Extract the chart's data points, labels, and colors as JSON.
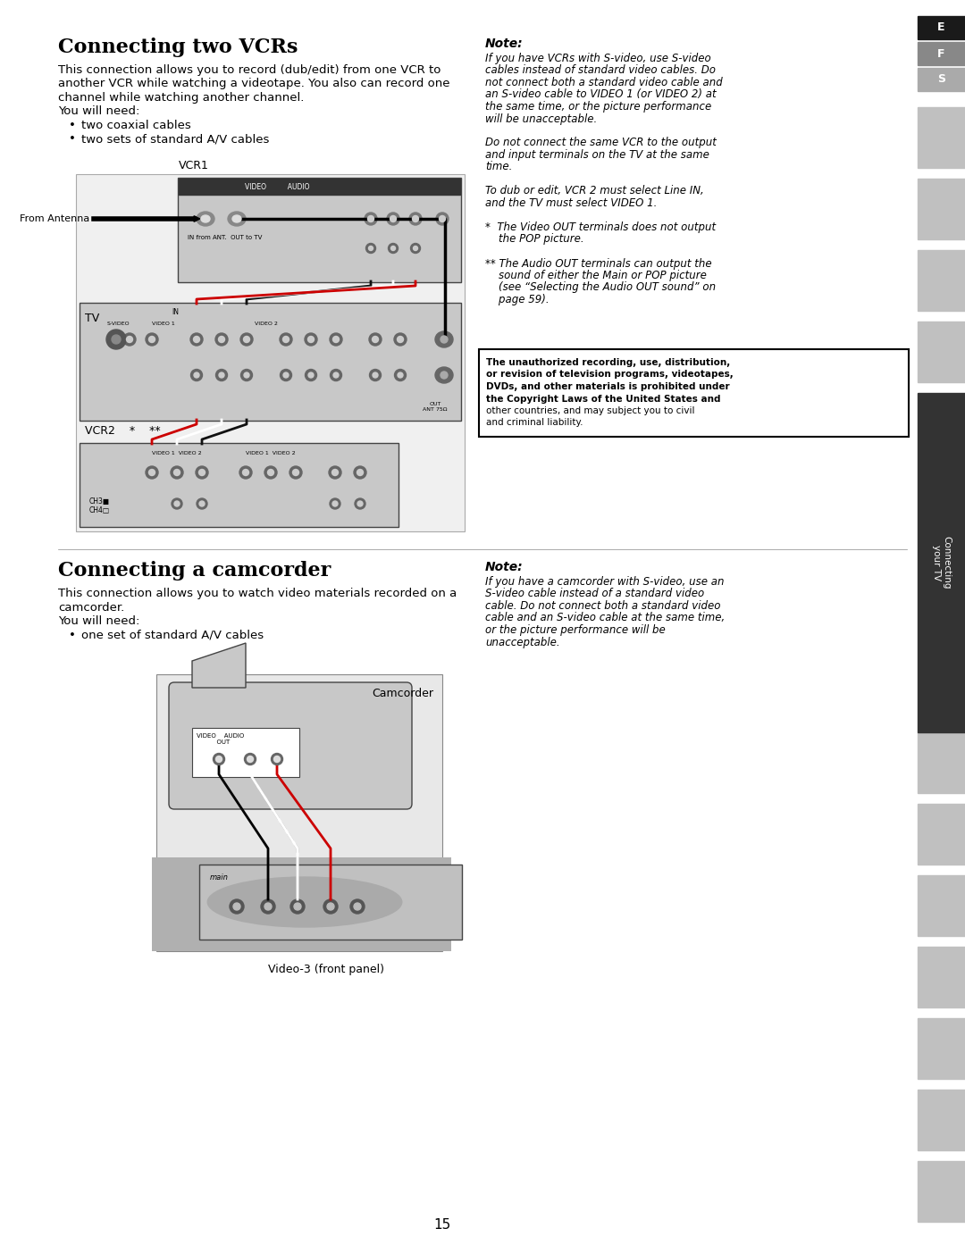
{
  "bg_color": "#ffffff",
  "page_number": "15",
  "s1_title": "Connecting two VCRs",
  "s1_body1": "This connection allows you to record (dub/edit) from one VCR to",
  "s1_body2": "another VCR while watching a videotape. You also can record one",
  "s1_body3": "channel while watching another channel.",
  "s1_need": "You will need:",
  "s1_bullets": [
    "two coaxial cables",
    "two sets of standard A/V cables"
  ],
  "n1_title": "Note:",
  "n1_text": [
    "If you have VCRs with S-video, use S-video",
    "cables instead of standard video cables. Do",
    "not connect both a standard video cable and",
    "an S-video cable to VIDEO 1 (or VIDEO 2) at",
    "the same time, or the picture performance",
    "will be unacceptable.",
    "",
    "Do not connect the same VCR to the output",
    "and input terminals on the TV at the same",
    "time.",
    "",
    "To dub or edit, VCR 2 must select Line IN,",
    "and the TV must select VIDEO 1.",
    "",
    "*  The Video OUT terminals does not output",
    "    the POP picture.",
    "",
    "** The Audio OUT terminals can output the",
    "    sound of either the Main or POP picture",
    "    (see “Selecting the Audio OUT sound” on",
    "    page 59)."
  ],
  "warn_text_bold": [
    "The unauthorized recording, use, distribution,",
    "or revision of television programs, videotapes,",
    "DVDs, and other materials is prohibited under",
    "the Copyright Laws of the United States and"
  ],
  "warn_text_normal": [
    "other countries, and may subject you to civil",
    "and criminal liability."
  ],
  "s2_title": "Connecting a camcorder",
  "s2_body1": "This connection allows you to watch video materials recorded on a",
  "s2_body2": "camcorder.",
  "s2_need": "You will need:",
  "s2_bullets": [
    "one set of standard A/V cables"
  ],
  "n2_title": "Note:",
  "n2_text": [
    "If you have a camcorder with S-video, use an",
    "S-video cable instead of a standard video",
    "cable. Do not connect both a standard video",
    "cable and an S-video cable at the same time,",
    "or the picture performance will be",
    "unacceptable."
  ],
  "vcr1_label": "VCR1",
  "vcr2_label": "VCR2",
  "from_ant_label": "From Antenna",
  "tv_label": "TV",
  "camcorder_label": "Camcorder",
  "video3_label": "Video-3 (front panel)",
  "sidebar_tabs": [
    "E",
    "F",
    "S"
  ],
  "sidebar_tab_colors": [
    "#1a1a1a",
    "#888888",
    "#aaaaaa"
  ],
  "sidebar_main_bg": "#333333",
  "sidebar_main_text": "Connecting\nyour TV",
  "sidebar_gray": "#c0c0c0",
  "diag_fill": "#c8c8c8",
  "diag_inner": "#e0e0e0"
}
